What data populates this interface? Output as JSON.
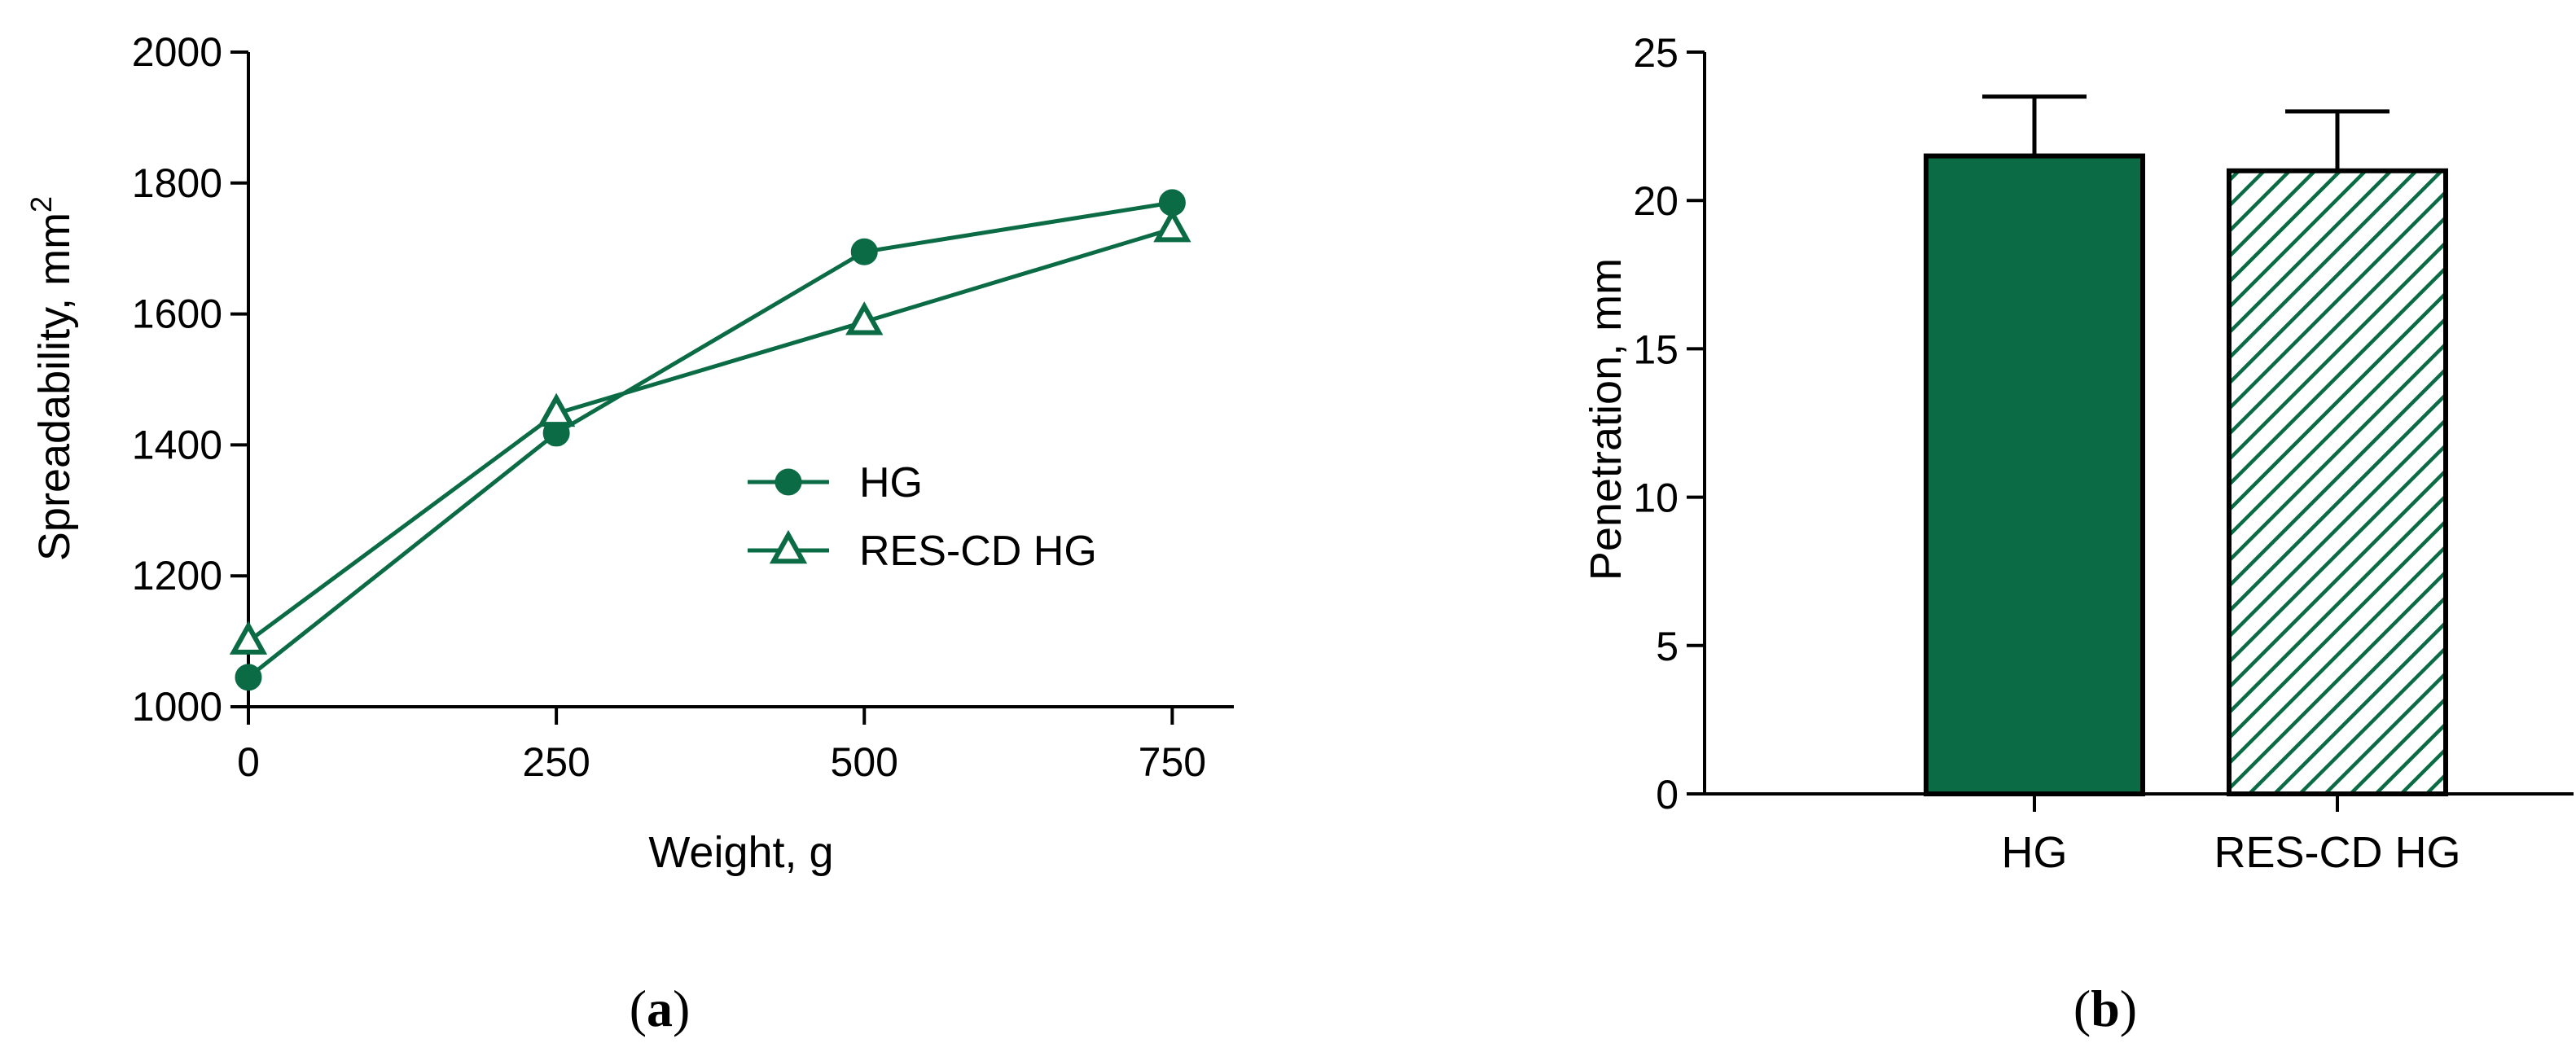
{
  "colors": {
    "accent": "#0a6b45",
    "axis": "#000000",
    "background": "#ffffff"
  },
  "chart_data": [
    {
      "type": "line",
      "panel_label": "a",
      "title": "",
      "xlabel": "Weight, g",
      "ylabel_main": "Spreadability, mm",
      "ylabel_sup": "2",
      "xlim": [
        0,
        800
      ],
      "ylim": [
        1000,
        2000
      ],
      "x_ticks": [
        0,
        250,
        500,
        750
      ],
      "y_ticks": [
        1000,
        1200,
        1400,
        1600,
        1800,
        2000
      ],
      "x": [
        0,
        250,
        500,
        750
      ],
      "legend_position": "center-right",
      "series": [
        {
          "name": "HG",
          "marker": "circle-filled",
          "values": [
            1045,
            1418,
            1695,
            1770
          ]
        },
        {
          "name": "RES-CD HG",
          "marker": "triangle-open",
          "values": [
            1100,
            1448,
            1588,
            1730
          ]
        }
      ]
    },
    {
      "type": "bar",
      "panel_label": "b",
      "title": "",
      "xlabel": "",
      "ylabel": "Penetration, mm",
      "ylim": [
        0,
        25
      ],
      "y_ticks": [
        0,
        5,
        10,
        15,
        20,
        25
      ],
      "categories": [
        "HG",
        "RES-CD HG"
      ],
      "values": [
        21.5,
        21.0
      ],
      "errors": [
        2.0,
        2.0
      ],
      "fills": [
        "solid",
        "hatched"
      ]
    }
  ]
}
